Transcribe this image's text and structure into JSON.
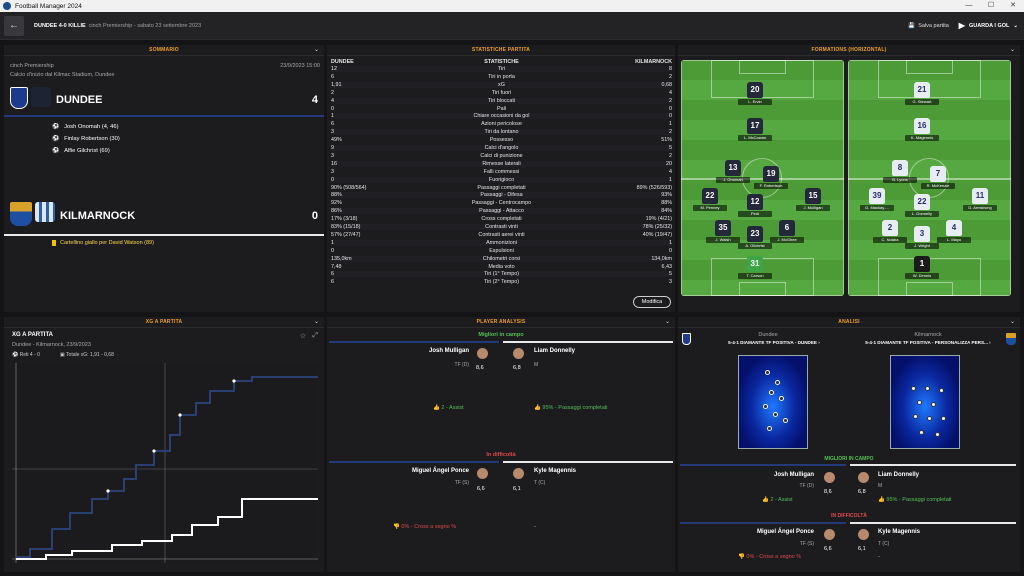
{
  "window": {
    "title": "Football Manager 2024"
  },
  "topbar": {
    "match": "DUNDEE 4-0 KILLIE",
    "sub": "cinch Premiership - sabato 23 settembre 2023",
    "save": "Salva partita",
    "goals": "GUARDA I GOL"
  },
  "summary": {
    "title": "SOMMARIO",
    "competition": "cinch Premiership",
    "datetime": "23/9/2023 15:00",
    "venue": "Calcio d'inizio dal Kilmac Stadium, Dundee",
    "home": {
      "name": "DUNDEE",
      "score": "4",
      "scorers": [
        "Josh Onomah (4, 46)",
        "Finlay Robertson (30)",
        "Alfie Gilchrist (69)"
      ]
    },
    "away": {
      "name": "KILMARNOCK",
      "score": "0",
      "event": "Cartellino giallo per David Watson (89)"
    }
  },
  "stats": {
    "title": "STATISTICHE PARTITA",
    "h_home": "DUNDEE",
    "h_mid": "STATISTICHE",
    "h_away": "KILMARNOCK",
    "modify": "Modifica",
    "rows": [
      [
        "12",
        "Tiri",
        "8"
      ],
      [
        "6",
        "Tiri in porta",
        "2"
      ],
      [
        "1,91",
        "xG",
        "0,68"
      ],
      [
        "2",
        "Tiri fuori",
        "4"
      ],
      [
        "4",
        "Tiri bloccati",
        "2"
      ],
      [
        "0",
        "Pali",
        "0"
      ],
      [
        "1",
        "Chiare occasioni da gol",
        "0"
      ],
      [
        "6",
        "Azioni pericolose",
        "1"
      ],
      [
        "3",
        "Tiri da lontano",
        "2"
      ],
      [
        "49%",
        "Possesso",
        "51%"
      ],
      [
        "9",
        "Calci d'angolo",
        "5"
      ],
      [
        "3",
        "Calci di punizione",
        "2"
      ],
      [
        "16",
        "Rimesse laterali",
        "20"
      ],
      [
        "3",
        "Falli commessi",
        "4"
      ],
      [
        "0",
        "Fuorigioco",
        "1"
      ],
      [
        "90% (508/564)",
        "Passaggi completati",
        "89% (526/593)"
      ],
      [
        "88%",
        "Passaggi - Difesa",
        "93%"
      ],
      [
        "92%",
        "Passaggi - Centrocampo",
        "88%"
      ],
      [
        "86%",
        "Passaggi - Attacco",
        "84%"
      ],
      [
        "17% (3/18)",
        "Cross completati",
        "19% (4/21)"
      ],
      [
        "83% (15/18)",
        "Contrasti vinti",
        "78% (25/32)"
      ],
      [
        "57% (27/47)",
        "Contrasti aerei vinti",
        "40% (19/47)"
      ],
      [
        "1",
        "Ammonizioni",
        "1"
      ],
      [
        "0",
        "Espulsioni",
        "0"
      ],
      [
        "135,0km",
        "Chilometri corsi",
        "134,0km"
      ],
      [
        "7,48",
        "Media voto",
        "6,43"
      ],
      [
        "6",
        "Tiri (1° Tempo)",
        "5"
      ],
      [
        "6",
        "Tiri (2° Tempo)",
        "3"
      ]
    ]
  },
  "formations": {
    "title": "FORMATIONS (HORIZONTAL)",
    "home": [
      [
        "20",
        "L. Ervin",
        52,
        22
      ],
      [
        "17",
        "L. McCowan",
        52,
        58
      ],
      [
        "13",
        "J. Onomah",
        30,
        100
      ],
      [
        "19",
        "F. Robertson",
        68,
        106
      ],
      [
        "22",
        "M. Penney",
        7,
        128
      ],
      [
        "12",
        "Pedi",
        52,
        134
      ],
      [
        "15",
        "J. Mulligan",
        110,
        128
      ],
      [
        "35",
        "J. Walsh",
        20,
        160
      ],
      [
        "23",
        "A. Gilchrist",
        52,
        166
      ],
      [
        "6",
        "J. McGhee",
        84,
        160
      ],
      [
        "31",
        "T. Carson",
        52,
        196
      ]
    ],
    "away": [
      [
        "21",
        "G. Stewart",
        52,
        22
      ],
      [
        "16",
        "K. Magennis",
        52,
        58
      ],
      [
        "8",
        "B. Lyons",
        30,
        100
      ],
      [
        "7",
        "R. McKenzie",
        68,
        106
      ],
      [
        "39",
        "G. Mackay-...",
        7,
        128
      ],
      [
        "22",
        "L. Donnelly",
        52,
        134
      ],
      [
        "11",
        "D. Armstrong",
        110,
        128
      ],
      [
        "2",
        "C. Ndaba",
        20,
        160
      ],
      [
        "3",
        "J. Wright",
        52,
        166
      ],
      [
        "4",
        "L. Mayo",
        84,
        160
      ],
      [
        "1",
        "W. Dennis",
        52,
        196
      ]
    ]
  },
  "xg": {
    "title": "XG A PARTITA",
    "panel_title": "XG A PARTITA",
    "sub": "Dundee - Kilmarnock, 23/9/2023",
    "goals_label": "Reti 4 - 0",
    "total_label": "Totale xG: 1,91 - 0,68"
  },
  "analysis": {
    "title": "PLAYER ANALYSIS",
    "best": "Migliori in campo",
    "worst": "In difficoltà",
    "best_home": {
      "name": "Josh Mulligan",
      "pos": "TF (D)",
      "rating": "8,6",
      "stat": "2 - Assist"
    },
    "best_away": {
      "name": "Liam Donnelly",
      "pos": "M",
      "rating": "6,8",
      "stat": "95% - Passaggi completati"
    },
    "worst_home": {
      "name": "Miguel Ángel Ponce",
      "pos": "TF (S)",
      "rating": "6,6",
      "stat": "0% - Cross a segno %"
    },
    "worst_away": {
      "name": "Kyle Magennis",
      "pos": "T (C)",
      "rating": "6,1",
      "stat": "-"
    }
  },
  "analisi": {
    "title": "ANALISI",
    "home_team": "Dundee",
    "away_team": "Kilmarnock",
    "home_form": "5-4-1 DIAMANTE TF POSITIVA - DUNDEE",
    "away_form": "5-4-1 DIAMANTE TF POSITIVA - PERSONALIZZA PERS...",
    "best": "MIGLIORI IN CAMPO",
    "worst": "IN DIFFICOLTÀ"
  }
}
